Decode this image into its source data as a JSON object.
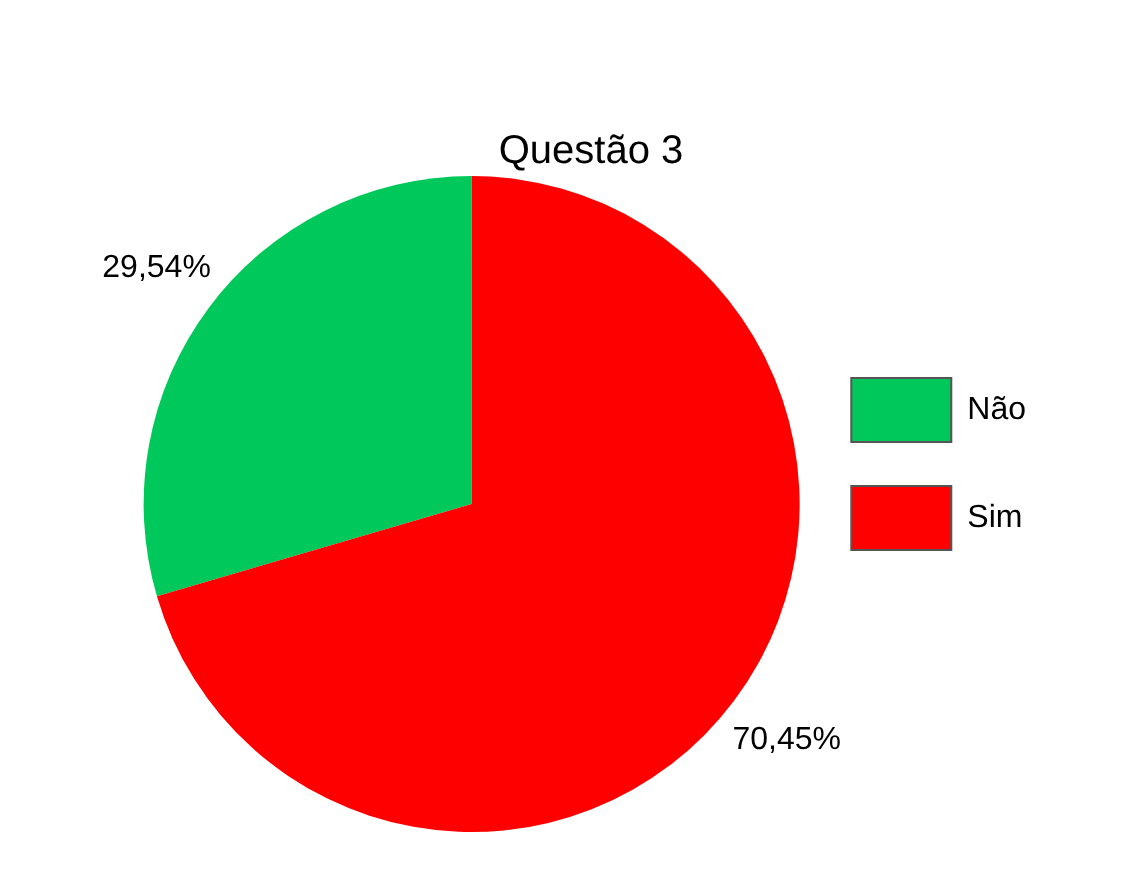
{
  "chart_data": {
    "type": "pie",
    "title": "Questão 3",
    "categories": [
      "Não",
      "Sim"
    ],
    "values": [
      29.54,
      70.45
    ],
    "colors": [
      "#00c85a",
      "#ff0000"
    ],
    "value_labels": [
      "29,54%",
      "70,45%"
    ],
    "legend": "right"
  }
}
